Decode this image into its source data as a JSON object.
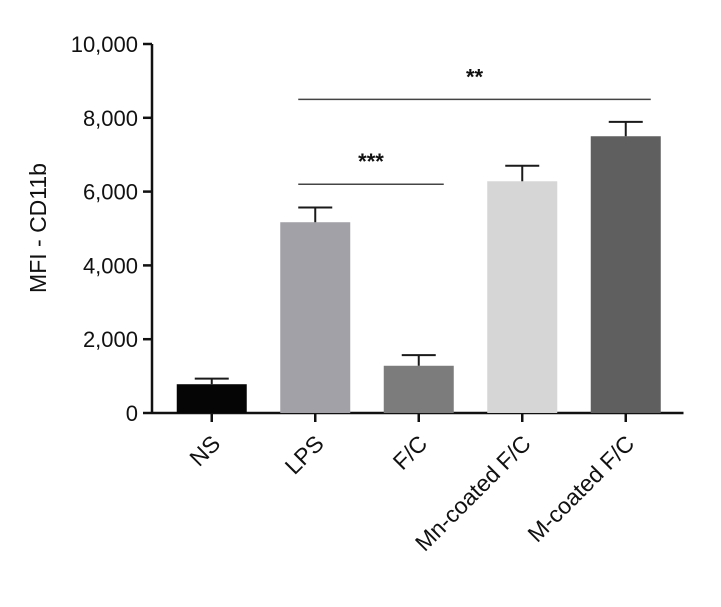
{
  "chart_data": {
    "type": "bar",
    "title": "",
    "xlabel": "",
    "ylabel": "MFI - CD11b",
    "ylim": [
      0,
      10000
    ],
    "yticks": [
      0,
      2000,
      4000,
      6000,
      8000,
      10000
    ],
    "ytick_labels": [
      "0",
      "2,000",
      "4,000",
      "6,000",
      "8,000",
      "10,000"
    ],
    "categories": [
      "NS",
      "LPS",
      "F/C",
      "Mn-coated F/C",
      "M-coated F/C"
    ],
    "values": [
      780,
      5170,
      1280,
      6280,
      7500
    ],
    "errors": [
      150,
      400,
      290,
      420,
      390
    ],
    "colors": [
      "#050505",
      "#a2a1a7",
      "#7c7c7c",
      "#d6d6d6",
      "#5f5f5f"
    ],
    "grid": false,
    "legend": "none",
    "annotations": [
      {
        "text": "***",
        "from": "LPS",
        "to": "F/C",
        "y": 6200
      },
      {
        "text": "**",
        "from": "LPS",
        "to": "M-coated F/C",
        "y": 8500
      }
    ]
  }
}
